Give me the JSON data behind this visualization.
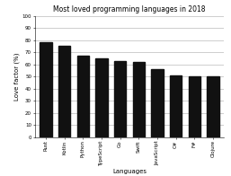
{
  "title": "Most loved programming languages in 2018",
  "xlabel": "Languages",
  "ylabel": "Love factor (%)",
  "categories": [
    "Rust",
    "Kotlin",
    "Python",
    "TypeScript",
    "Go",
    "Swift",
    "JavaScript",
    "C#",
    "F#",
    "Clojure"
  ],
  "values": [
    78,
    75,
    67,
    65,
    63,
    62,
    56,
    51,
    50,
    50
  ],
  "bar_color": "#111111",
  "ylim": [
    0,
    100
  ],
  "yticks": [
    0,
    10,
    20,
    30,
    40,
    50,
    60,
    70,
    80,
    90,
    100
  ],
  "background_color": "#ffffff",
  "title_fontsize": 5.5,
  "axis_fontsize": 5,
  "tick_fontsize": 4,
  "bar_width": 0.65
}
